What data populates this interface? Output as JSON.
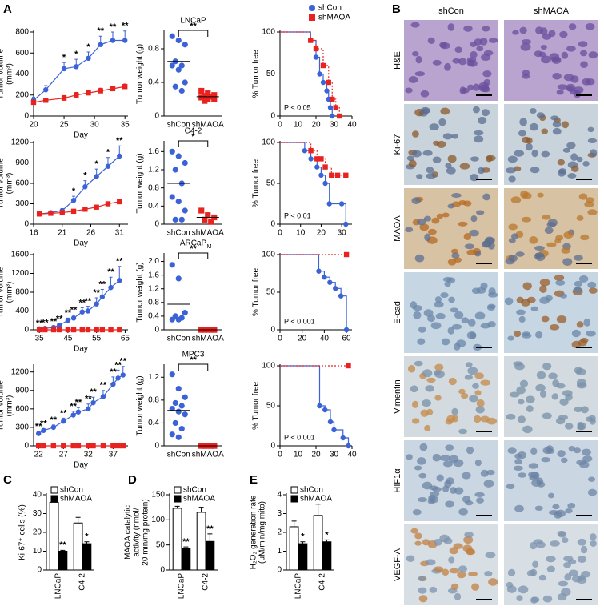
{
  "panel_labels": [
    "A",
    "B",
    "C",
    "D",
    "E"
  ],
  "ihc": {
    "columns": [
      "shCon",
      "shMAOA"
    ],
    "rows": [
      "H&E",
      "Ki-67",
      "MAOA",
      "E-cad",
      "Vimentin",
      "HIF1α",
      "VEGF-A"
    ]
  },
  "chart_data": [
    {
      "type": "line",
      "ylabel": [
        "Tumor volume",
        "(mm³)"
      ],
      "xlabel": "Day",
      "xlim": [
        20,
        35.5
      ],
      "xticks": [
        20,
        25,
        30,
        35
      ],
      "ylim": [
        0,
        800
      ],
      "yticks": [
        0,
        200,
        400,
        600,
        800
      ],
      "x": [
        20,
        22,
        25,
        27,
        29,
        31,
        33,
        35
      ],
      "series": [
        {
          "color": "#3b62d6",
          "marker": "circle",
          "values": [
            150,
            250,
            450,
            470,
            550,
            680,
            720,
            720
          ],
          "errors": [
            30,
            40,
            60,
            70,
            60,
            80,
            80,
            90
          ]
        },
        {
          "color": "#e8231f",
          "marker": "square",
          "values": [
            130,
            150,
            170,
            200,
            220,
            240,
            260,
            280
          ],
          "errors": [
            20,
            20,
            25,
            25,
            25,
            25,
            25,
            25
          ]
        }
      ],
      "significance": [
        null,
        null,
        "*",
        "*",
        "*",
        "**",
        "**",
        "**"
      ]
    },
    {
      "type": "scatter",
      "title": "LNCaP",
      "ylabel": "Tumor weight (g)",
      "ylim": [
        0,
        1.0
      ],
      "yticks": [
        0,
        0.4,
        0.8
      ],
      "categories": [
        "shCon",
        "shMAOA"
      ],
      "groups": [
        {
          "color": "#3b62d6",
          "marker": "circle",
          "values": [
            0.95,
            0.9,
            0.85,
            0.65,
            0.6,
            0.6,
            0.55,
            0.4,
            0.35,
            0.3
          ],
          "mean": 0.65
        },
        {
          "color": "#e8231f",
          "marker": "square",
          "values": [
            0.3,
            0.27,
            0.25,
            0.24,
            0.23,
            0.22,
            0.2,
            0.2,
            0.18
          ],
          "mean": 0.23
        }
      ],
      "significance": "**"
    },
    {
      "type": "step",
      "ylabel": "% Tumor free",
      "xlim": [
        0,
        40
      ],
      "xticks": [
        0,
        10,
        20,
        30,
        40
      ],
      "ylim": [
        0,
        100
      ],
      "yticks": [
        0,
        50,
        100
      ],
      "annotation": "P < 0.05",
      "legend": true,
      "series": [
        {
          "name": "shCon",
          "color": "#3b62d6",
          "marker": "circle",
          "x": [
            0,
            17,
            20,
            22,
            24,
            26,
            27,
            28,
            29
          ],
          "values": [
            100,
            90,
            70,
            50,
            40,
            30,
            20,
            10,
            0
          ]
        },
        {
          "name": "shMAOA",
          "color": "#e8231f",
          "marker": "square",
          "dashed": true,
          "x": [
            0,
            17,
            20,
            24,
            27,
            29,
            31,
            33
          ],
          "values": [
            100,
            90,
            80,
            60,
            40,
            20,
            10,
            0
          ]
        }
      ]
    },
    {
      "type": "line",
      "ylabel": [
        "Tumor volume",
        "(mm³)"
      ],
      "xlabel": "Day",
      "xlim": [
        16,
        32.5
      ],
      "xticks": [
        16,
        21,
        26,
        31
      ],
      "ylim": [
        0,
        1200
      ],
      "yticks": [
        0,
        300,
        600,
        900,
        1200
      ],
      "x": [
        17,
        19,
        21,
        23,
        25,
        27,
        29,
        31
      ],
      "series": [
        {
          "color": "#3b62d6",
          "marker": "circle",
          "values": [
            150,
            170,
            200,
            350,
            550,
            700,
            850,
            1000
          ],
          "errors": [
            20,
            20,
            30,
            60,
            90,
            110,
            130,
            150
          ]
        },
        {
          "color": "#e8231f",
          "marker": "square",
          "values": [
            150,
            160,
            170,
            190,
            220,
            250,
            300,
            330
          ],
          "errors": [
            15,
            15,
            20,
            20,
            25,
            30,
            30,
            35
          ]
        }
      ],
      "significance": [
        null,
        null,
        null,
        "*",
        "*",
        "*",
        "*",
        "**"
      ]
    },
    {
      "type": "scatter",
      "title": "C4-2",
      "ylabel": "Tumor weight (g)",
      "ylim": [
        0,
        1.8
      ],
      "yticks": [
        0,
        0.4,
        0.8,
        1.2,
        1.6
      ],
      "categories": [
        "shCon",
        "shMAOA"
      ],
      "groups": [
        {
          "color": "#3b62d6",
          "marker": "circle",
          "values": [
            1.6,
            1.5,
            1.35,
            1.2,
            0.9,
            0.6,
            0.5,
            0.3,
            0.1,
            0.1
          ],
          "mean": 0.9
        },
        {
          "color": "#e8231f",
          "marker": "square",
          "values": [
            0.3,
            0.2,
            0.15,
            0.1,
            0.05
          ],
          "mean": 0.15
        }
      ],
      "significance": "*"
    },
    {
      "type": "step",
      "ylabel": "% Tumor free",
      "xlim": [
        0,
        35
      ],
      "xticks": [
        0,
        10,
        20,
        30
      ],
      "ylim": [
        0,
        100
      ],
      "yticks": [
        0,
        50,
        100
      ],
      "annotation": "P < 0.01",
      "series": [
        {
          "color": "#3b62d6",
          "marker": "circle",
          "x": [
            0,
            12,
            15,
            18,
            20,
            22,
            24,
            30,
            32
          ],
          "values": [
            100,
            90,
            80,
            70,
            60,
            50,
            25,
            25,
            0
          ]
        },
        {
          "color": "#e8231f",
          "marker": "square",
          "dashed": true,
          "x": [
            0,
            15,
            18,
            20,
            22,
            25,
            28,
            32
          ],
          "values": [
            100,
            90,
            80,
            80,
            70,
            60,
            60,
            60
          ]
        }
      ]
    },
    {
      "type": "line",
      "ylabel": [
        "Tumor volume",
        "(mm³)"
      ],
      "xlabel": "Day",
      "xlim": [
        33,
        66
      ],
      "xticks": [
        35,
        45,
        55,
        65
      ],
      "ylim": [
        0,
        1600
      ],
      "yticks": [
        0,
        400,
        800,
        1200,
        1600
      ],
      "x": [
        35,
        37,
        40,
        42,
        45,
        47,
        50,
        52,
        55,
        57,
        60,
        63
      ],
      "series": [
        {
          "color": "#3b62d6",
          "marker": "circle",
          "values": [
            20,
            30,
            50,
            100,
            200,
            250,
            380,
            400,
            550,
            700,
            900,
            1050
          ],
          "errors": [
            10,
            10,
            20,
            30,
            50,
            60,
            90,
            100,
            130,
            160,
            220,
            300
          ]
        },
        {
          "color": "#e8231f",
          "marker": "square",
          "values": [
            0,
            0,
            0,
            0,
            0,
            0,
            0,
            0,
            0,
            0,
            0,
            0
          ],
          "errors": [
            0,
            0,
            0,
            0,
            0,
            0,
            0,
            0,
            0,
            0,
            0,
            0
          ]
        }
      ],
      "significance": [
        "**",
        "**",
        "**",
        "**",
        "**",
        "**",
        "**",
        "**",
        "**",
        "**",
        "**",
        "**"
      ]
    },
    {
      "type": "scatter",
      "title": "ARCaP",
      "title_sub": "M",
      "ylabel": "Tumor weight (g)",
      "ylim": [
        0,
        2.2
      ],
      "yticks": [
        0,
        0.4,
        0.8,
        1.2,
        1.6,
        {
          "value": 2,
          "label": "2.0"
        }
      ],
      "categories": [
        "shCon",
        "shMAOA"
      ],
      "groups": [
        {
          "color": "#3b62d6",
          "marker": "circle",
          "values": [
            1.9,
            1.5,
            0.5,
            0.4,
            0.35,
            0.3,
            0.3
          ],
          "mean": 0.75
        },
        {
          "color": "#e8231f",
          "marker": "square",
          "values": [
            0,
            0,
            0,
            0,
            0,
            0,
            0,
            0
          ],
          "mean": 0
        }
      ],
      "significance": "**"
    },
    {
      "type": "step",
      "ylabel": "% Tumor free",
      "xlim": [
        0,
        65
      ],
      "xticks": [
        0,
        20,
        40,
        60
      ],
      "ylim": [
        0,
        100
      ],
      "yticks": [
        0,
        50,
        100
      ],
      "annotation": "P < 0.001",
      "series": [
        {
          "color": "#3b62d6",
          "marker": "circle",
          "x": [
            0,
            35,
            40,
            45,
            50,
            55,
            60
          ],
          "values": [
            100,
            78,
            70,
            63,
            55,
            45,
            0
          ]
        },
        {
          "color": "#e8231f",
          "marker": "square",
          "dashed": true,
          "x": [
            0,
            60
          ],
          "values": [
            100,
            100
          ]
        }
      ]
    },
    {
      "type": "line",
      "ylabel": [
        "Tumor volume",
        "(mm³)"
      ],
      "xlabel": "Day",
      "xlim": [
        21,
        40
      ],
      "xticks": [
        22,
        27,
        32,
        37
      ],
      "ylim": [
        0,
        1300
      ],
      "yticks": [
        0,
        300,
        600,
        900,
        1200
      ],
      "x": [
        22,
        23,
        25,
        27,
        29,
        30,
        32,
        33,
        35,
        37,
        38,
        39
      ],
      "series": [
        {
          "color": "#3b62d6",
          "marker": "circle",
          "values": [
            200,
            250,
            300,
            400,
            500,
            550,
            600,
            700,
            800,
            1000,
            1100,
            1150
          ],
          "errors": [
            30,
            30,
            40,
            50,
            60,
            70,
            80,
            90,
            100,
            120,
            130,
            140
          ]
        },
        {
          "color": "#e8231f",
          "marker": "square",
          "values": [
            0,
            0,
            0,
            0,
            0,
            0,
            0,
            0,
            0,
            0,
            0,
            0
          ],
          "errors": [
            0,
            0,
            0,
            0,
            0,
            0,
            0,
            0,
            0,
            0,
            0,
            0
          ]
        }
      ],
      "significance": [
        "**",
        "**",
        "**",
        "**",
        "**",
        "**",
        "**",
        "**",
        "**",
        "**",
        "**",
        "**"
      ]
    },
    {
      "type": "scatter",
      "title": "MPC3",
      "ylabel": "Tumor weight (g)",
      "ylim": [
        0,
        1.4
      ],
      "yticks": [
        0,
        0.4,
        0.8,
        1.2
      ],
      "categories": [
        "shCon",
        "shMAOA"
      ],
      "groups": [
        {
          "color": "#3b62d6",
          "marker": "circle",
          "values": [
            1.25,
            1.0,
            0.85,
            0.75,
            0.7,
            0.65,
            0.6,
            0.55,
            0.4,
            0.3,
            0.2,
            0.15
          ],
          "mean": 0.62
        },
        {
          "color": "#e8231f",
          "marker": "square",
          "values": [
            0,
            0,
            0,
            0,
            0,
            0,
            0,
            0,
            0,
            0
          ],
          "mean": 0
        }
      ],
      "significance": "**"
    },
    {
      "type": "step",
      "ylabel": "% Tumor free",
      "xlim": [
        0,
        40
      ],
      "xticks": [
        0,
        10,
        20,
        30,
        40
      ],
      "ylim": [
        0,
        100
      ],
      "yticks": [
        0,
        50,
        100
      ],
      "annotation": "P < 0.001",
      "series": [
        {
          "color": "#3b62d6",
          "marker": "circle",
          "x": [
            0,
            22,
            25,
            28,
            30,
            35,
            38
          ],
          "values": [
            100,
            50,
            45,
            30,
            20,
            10,
            0
          ]
        },
        {
          "color": "#e8231f",
          "marker": "square",
          "dashed": true,
          "x": [
            0,
            38
          ],
          "values": [
            100,
            100
          ]
        }
      ]
    },
    {
      "type": "bar",
      "ylabel": "Ki-67⁺ cells (%)",
      "ylim": [
        0,
        40
      ],
      "yticks": [
        0,
        10,
        20,
        30,
        40
      ],
      "categories": [
        "LNCaP",
        "C4-2"
      ],
      "legend": true,
      "series": [
        {
          "name": "shCon",
          "color": "#ffffff",
          "values": [
            36,
            25
          ],
          "errors": [
            2,
            3
          ]
        },
        {
          "name": "shMAOA",
          "color": "#000000",
          "values": [
            10,
            14
          ],
          "errors": [
            0.5,
            1
          ],
          "significance": [
            "**",
            "*"
          ]
        }
      ]
    },
    {
      "type": "bar",
      "ylabel": [
        "MAOA catalytic",
        "activity (nmol/",
        "20 min/mg protein)"
      ],
      "ylim": [
        0,
        150
      ],
      "yticks": [
        0,
        50,
        100,
        150
      ],
      "categories": [
        "LNCaP",
        "C4-2"
      ],
      "legend": true,
      "series": [
        {
          "name": "shCon",
          "color": "#ffffff",
          "values": [
            123,
            115
          ],
          "errors": [
            4,
            10
          ]
        },
        {
          "name": "shMAOA",
          "color": "#000000",
          "values": [
            43,
            57
          ],
          "errors": [
            3,
            15
          ],
          "significance": [
            "**",
            "**"
          ]
        }
      ]
    },
    {
      "type": "bar",
      "ylabel": [
        "H₂O₂ generation rate",
        "(μM/min/mg mito)"
      ],
      "ylim": [
        0,
        4
      ],
      "yticks": [
        0,
        1,
        2,
        3,
        4
      ],
      "categories": [
        "LNCaP",
        "C4-2"
      ],
      "legend": true,
      "series": [
        {
          "name": "shCon",
          "color": "#ffffff",
          "values": [
            2.3,
            2.9
          ],
          "errors": [
            0.3,
            0.6
          ]
        },
        {
          "name": "shMAOA",
          "color": "#000000",
          "values": [
            1.4,
            1.5
          ],
          "errors": [
            0.1,
            0.1
          ],
          "significance": [
            "*",
            "*"
          ]
        }
      ]
    }
  ]
}
